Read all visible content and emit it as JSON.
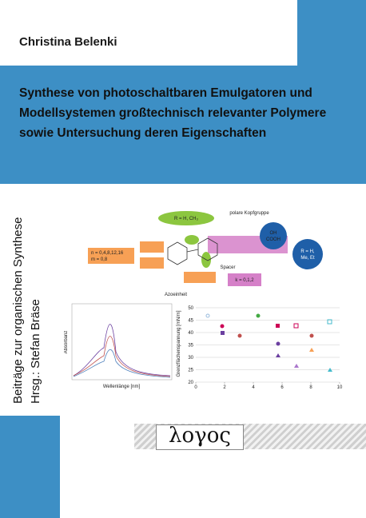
{
  "author": "Christina Belenki",
  "title": [
    "Synthese von photoschaltbaren Emulgatoren und",
    "Modellsystemen großtechnisch relevanter Polymere",
    "sowie Untersuchung deren Eigenschaften"
  ],
  "series": "Beiträge zur organischen Synthese",
  "editor": "Hrsg.: Stefan Bräse",
  "publisher": "λογος",
  "figure": {
    "labels": [
      "R = H, CH₃",
      "polare Kopfgruppe",
      "OH",
      "COOH",
      "R = H,",
      "Me, Et",
      "n = 0,4,8,12,16",
      "m = 0,8",
      "k = 0,1,2",
      "Spacer",
      "Azoeinheit"
    ],
    "left_chart": {
      "x_label": "Wellenlänge [nm]",
      "y_label": "Absorbanz"
    },
    "right_chart": {
      "y_label": "Grenzflächenspannung [mN/m]",
      "yticks": [
        20,
        25,
        30,
        35,
        40,
        45,
        50
      ],
      "xticks": [
        0,
        2,
        4,
        6,
        8,
        10
      ]
    }
  }
}
